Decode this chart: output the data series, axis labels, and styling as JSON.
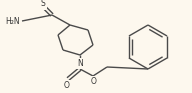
{
  "bg_color": "#fdf8ee",
  "bond_color": "#4a4a4a",
  "atom_color": "#333333",
  "bond_width": 1.0,
  "figsize": [
    1.92,
    0.93
  ],
  "dpi": 100,
  "xlim": [
    0,
    192
  ],
  "ylim": [
    0,
    93
  ]
}
